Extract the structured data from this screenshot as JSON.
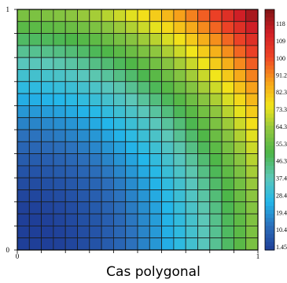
{
  "caption": "Cas polygonal",
  "chart_data": {
    "type": "heatmap",
    "title": "",
    "xlabel": "",
    "ylabel": "",
    "xlim": [
      0,
      1
    ],
    "ylim": [
      0,
      1
    ],
    "grid_size": 20,
    "x_tick_labels": [
      "0",
      "1"
    ],
    "y_tick_labels": [
      "0",
      "1"
    ],
    "colorbar": {
      "labels": [
        "118",
        "109",
        "100",
        "91.2",
        "82.3",
        "73.3",
        "64.3",
        "55.3",
        "46.3",
        "37.4",
        "28.4",
        "19.4",
        "10.4",
        "1.45"
      ],
      "min": 1.45,
      "max": 127,
      "colors": [
        "#1f3f98",
        "#2c6fbb",
        "#23b7ea",
        "#5cc7b8",
        "#4cb649",
        "#8ec63f",
        "#f2e51a",
        "#f7a11a",
        "#ef4526",
        "#d11f26",
        "#7f1416"
      ]
    },
    "value_function": "value approximately 127 * (x^2 + y^2) / 2 at each cell centre, sampled on a 20 x 20 grid over [0,1] x [0,1]"
  }
}
